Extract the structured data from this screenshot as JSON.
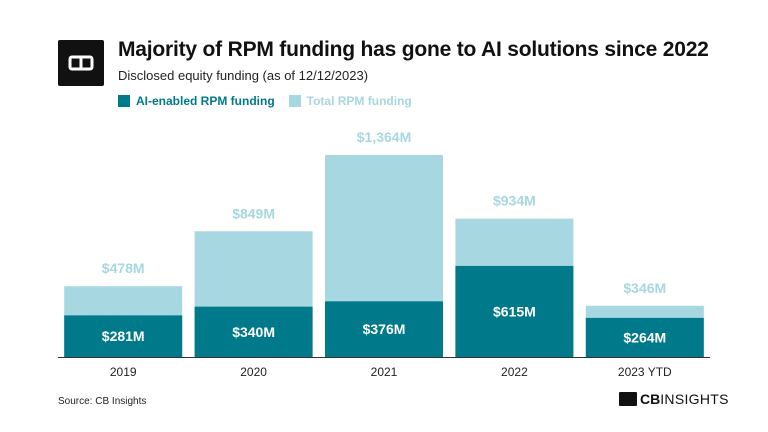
{
  "header": {
    "title": "Majority of RPM funding has gone to AI solutions since 2022",
    "subtitle": "Disclosed equity funding (as of 12/12/2023)"
  },
  "footer": {
    "source": "Source: CB Insights",
    "brand_bold": "CB",
    "brand_light": "INSIGHTS"
  },
  "chart_data": {
    "type": "bar",
    "stacked_overlay": true,
    "categories": [
      "2019",
      "2020",
      "2021",
      "2022",
      "2023 YTD"
    ],
    "series": [
      {
        "name": "AI-enabled RPM funding",
        "values": [
          281,
          340,
          376,
          615,
          264
        ],
        "labels": [
          "$281M",
          "$340M",
          "$376M",
          "$615M",
          "$264M"
        ],
        "color": "#007a8a"
      },
      {
        "name": "Total RPM funding",
        "values": [
          478,
          849,
          1364,
          934,
          346
        ],
        "labels": [
          "$478M",
          "$849M",
          "$1,364M",
          "$934M",
          "$346M"
        ],
        "color": "#a7d7e0"
      }
    ],
    "ylim": [
      0,
      1364
    ],
    "grid": false,
    "legend_position": "top-left"
  },
  "colors": {
    "ai": "#007a8a",
    "total": "#a7d7e0",
    "total_label": "#a7d7e0",
    "ai_label": "#ffffff",
    "axis": "#222222"
  }
}
